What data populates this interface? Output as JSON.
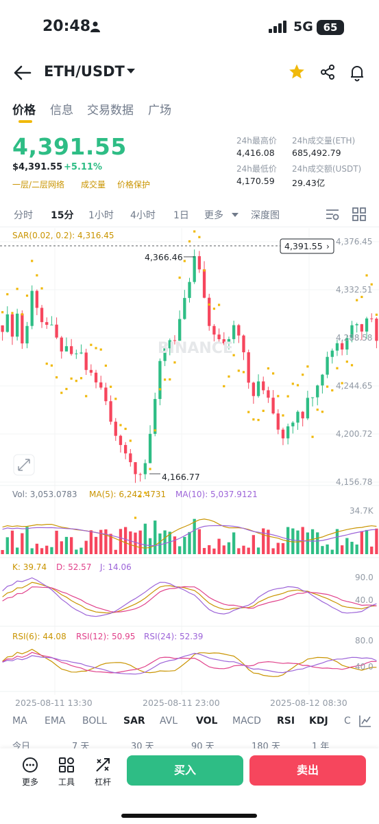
{
  "status": {
    "time": "20:48",
    "network": "5G",
    "battery": "65"
  },
  "header": {
    "pair": "ETH/USDT"
  },
  "tabs": [
    {
      "label": "价格",
      "active": true
    },
    {
      "label": "信息",
      "active": false
    },
    {
      "label": "交易数据",
      "active": false
    },
    {
      "label": "广场",
      "active": false
    }
  ],
  "price": {
    "last": "4,391.55",
    "fiat": "$4,391.55",
    "change": "+5.11%",
    "tags": [
      "一层/二层网络",
      "成交量",
      "价格保护"
    ]
  },
  "stats": {
    "high_label": "24h最高价",
    "high": "4,416.08",
    "vol_eth_label": "24h成交量(ETH)",
    "vol_eth": "685,492.79",
    "low_label": "24h最低价",
    "low": "4,170.59",
    "vol_usdt_label": "24h成交额(USDT)",
    "vol_usdt": "29.43亿"
  },
  "intervals": [
    {
      "label": "分时",
      "active": false
    },
    {
      "label": "15分",
      "active": true
    },
    {
      "label": "1小时",
      "active": false
    },
    {
      "label": "4小时",
      "active": false
    },
    {
      "label": "1日",
      "active": false
    },
    {
      "label": "更多",
      "active": false
    },
    {
      "label": "深度图",
      "active": false
    }
  ],
  "chart_labels": {
    "sar": "SAR(0.02, 0.2): 4,316.45",
    "current_price_tag": "4,391.55",
    "high_mark": "4,366.46",
    "low_mark": "4,166.77",
    "watermark": "BINANCE",
    "vol": "Vol: 3,053.0783",
    "ma5": "MA(5): 6,242.4731",
    "ma10": "MA(10): 5,037.9121",
    "vol_axis": "34.7K",
    "k": "K: 39.74",
    "d": "D: 52.57",
    "j": "J: 14.06",
    "kdj_axis_hi": "90.0",
    "kdj_axis_lo": "40.0",
    "rsi6": "RSI(6): 44.08",
    "rsi12": "RSI(12): 50.95",
    "rsi24": "RSI(24): 52.39",
    "rsi_axis_hi": "80.0",
    "rsi_axis_lo": "40.0"
  },
  "chart_data": {
    "type": "candlestick",
    "y_ticks": [
      "4,376.45",
      "4,332.51",
      "4,288.58",
      "4,244.65",
      "4,200.72",
      "4,156.78"
    ],
    "ylim": [
      4156.78,
      4376.45
    ],
    "x_ticks": [
      "2025-08-11 13:30",
      "2025-08-11 23:00",
      "2025-08-12 08:30"
    ],
    "close_path": [
      4300,
      4305,
      4295,
      4310,
      4285,
      4300,
      4330,
      4320,
      4305,
      4300,
      4295,
      4285,
      4280,
      4275,
      4270,
      4275,
      4270,
      4260,
      4255,
      4250,
      4240,
      4230,
      4210,
      4200,
      4195,
      4185,
      4175,
      4170,
      4168,
      4175,
      4195,
      4230,
      4270,
      4280,
      4290,
      4285,
      4300,
      4320,
      4340,
      4360,
      4350,
      4320,
      4300,
      4295,
      4285,
      4280,
      4290,
      4300,
      4295,
      4280,
      4250,
      4240,
      4245,
      4240,
      4235,
      4215,
      4205,
      4200,
      4210,
      4215,
      4225,
      4220,
      4230,
      4240,
      4250,
      4260,
      4270,
      4280,
      4285,
      4280,
      4290,
      4300,
      4305,
      4300,
      4310,
      4305,
      4290
    ]
  },
  "indicators": [
    {
      "label": "MA",
      "on": false
    },
    {
      "label": "EMA",
      "on": false
    },
    {
      "label": "BOLL",
      "on": false
    },
    {
      "label": "SAR",
      "on": true
    },
    {
      "label": "AVL",
      "on": false
    },
    {
      "label": "VOL",
      "on": true
    },
    {
      "label": "MACD",
      "on": false
    },
    {
      "label": "RSI",
      "on": true
    },
    {
      "label": "KDJ",
      "on": true
    },
    {
      "label": "C",
      "on": false
    }
  ],
  "ranges": [
    "今日",
    "7 天",
    "30 天",
    "90 天",
    "180 天",
    "1 年"
  ],
  "bottom": {
    "more": "更多",
    "tools": "工具",
    "leverage": "杠杆",
    "buy": "买入",
    "sell": "卖出"
  },
  "colors": {
    "up": "#2ebd85",
    "down": "#f6465d",
    "sar": "#f0b90b",
    "accent": "#f0b90b"
  }
}
